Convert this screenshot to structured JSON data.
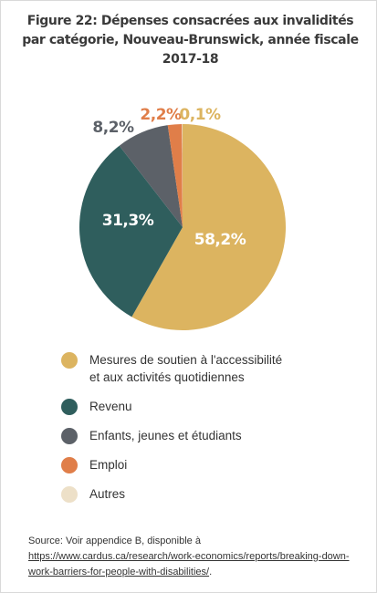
{
  "title": "Figure 22: Dépenses consacrées aux invalidités par catégorie, Nouveau-Brunswick, année fiscale 2017-18",
  "chart_data": {
    "type": "pie",
    "title": "Figure 22: Dépenses consacrées aux invalidités par catégorie, Nouveau-Brunswick, année fiscale 2017-18",
    "slices": [
      {
        "name": "Mesures de soutien à l'accessibilité et aux activités quotidiennes",
        "value": 58.2,
        "label": "58,2%",
        "color": "#dcb460"
      },
      {
        "name": "Revenu",
        "value": 31.3,
        "label": "31,3%",
        "color": "#2f5e5d"
      },
      {
        "name": "Enfants, jeunes et étudiants",
        "value": 8.2,
        "label": "8,2%",
        "color": "#5c6168"
      },
      {
        "name": "Emploi",
        "value": 2.2,
        "label": "2,2%",
        "color": "#e07e49"
      },
      {
        "name": "Autres",
        "value": 0.1,
        "label": "0,1%",
        "color": "#ede0c8"
      }
    ],
    "legend_position": "bottom"
  },
  "legend": [
    {
      "label": "Mesures de soutien à l'accessibilité\net aux activités quotidiennes",
      "color": "#dcb460"
    },
    {
      "label": "Revenu",
      "color": "#2f5e5d"
    },
    {
      "label": "Enfants, jeunes et étudiants",
      "color": "#5c6168"
    },
    {
      "label": "Emploi",
      "color": "#e07e49"
    },
    {
      "label": "Autres",
      "color": "#ede0c8"
    }
  ],
  "source": {
    "prefix": "Source: Voir appendice B, disponible à ",
    "link": "https://www.cardus.ca/research/work-economics/reports/breaking-down-work-barriers-for-people-with-disabilities/",
    "suffix": "."
  }
}
